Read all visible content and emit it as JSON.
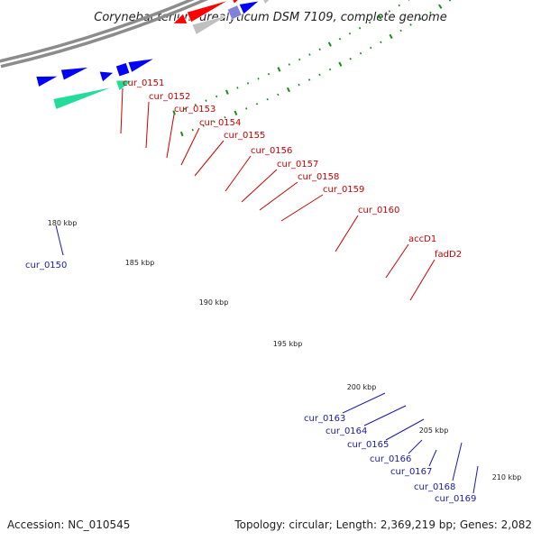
{
  "title": "Corynebacterium urealyticum DSM 7109, complete genome",
  "footer": {
    "accession": "Accession: NC_010545",
    "summary": "Topology: circular; Length: 2,369,219 bp; Genes: 2,082"
  },
  "colors": {
    "backbone": "#8c8c8c",
    "tick": "#1a8a1a",
    "label_red": "#cc0000",
    "label_blue": "#1a1aa8",
    "red_gene": "#ff0000",
    "blue_gene": "#0000ff",
    "grey_gene": "#c0c0c0",
    "dark_grey_gene": "#707070",
    "navy_gene": "#000080",
    "light_purple_gene": "#8080dd",
    "teal_gene": "#22dd99"
  },
  "kbp_labels": [
    "180 kbp",
    "185 kbp",
    "190 kbp",
    "195 kbp",
    "200 kbp",
    "205 kbp",
    "210 kbp"
  ],
  "gene_labels_red": [
    "cur_0151",
    "cur_0152",
    "cur_0153",
    "cur_0154",
    "cur_0155",
    "cur_0156",
    "cur_0157",
    "cur_0158",
    "cur_0159",
    "cur_0160",
    "accD1",
    "fadD2"
  ],
  "gene_labels_blue": [
    "cur_0150",
    "cur_0163",
    "cur_0164",
    "cur_0165",
    "cur_0166",
    "cur_0167",
    "cur_0168",
    "cur_0169"
  ]
}
